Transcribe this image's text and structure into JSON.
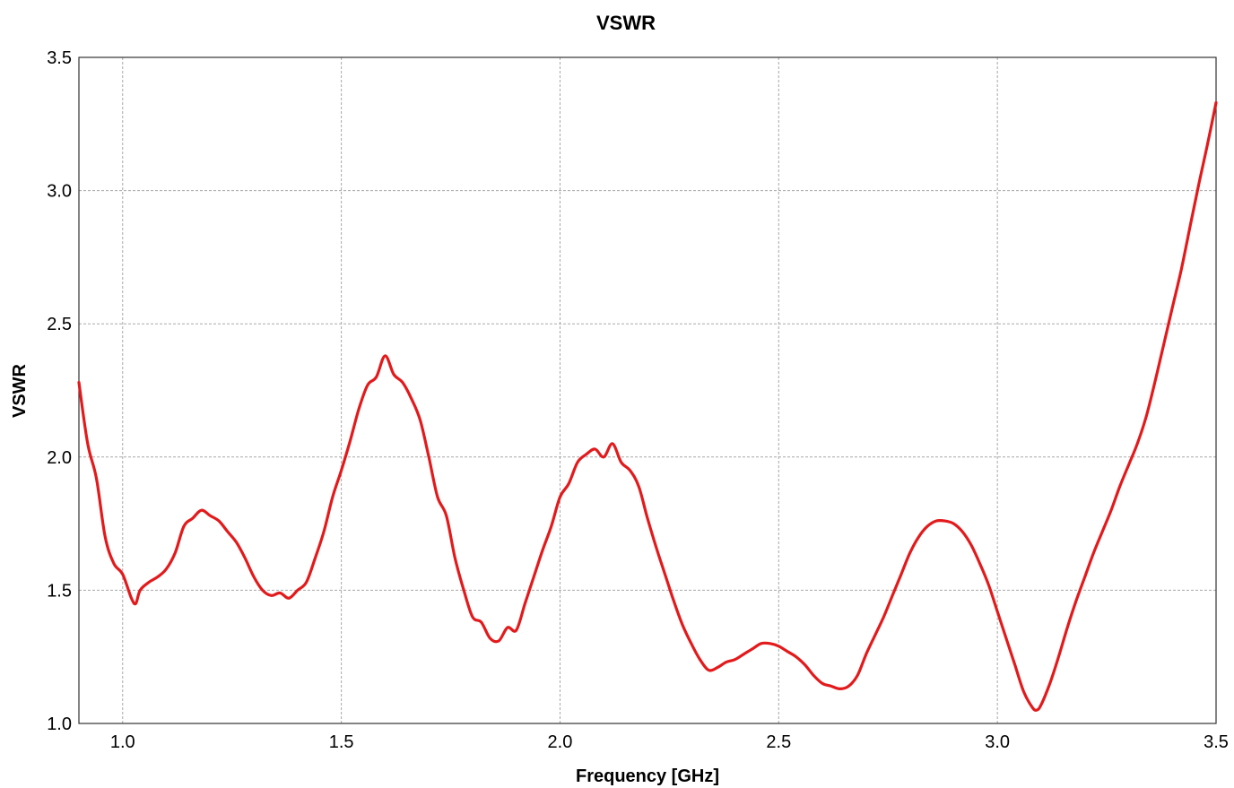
{
  "chart_data": {
    "type": "line",
    "title": "VSWR",
    "xlabel": "Frequency [GHz]",
    "ylabel": "VSWR",
    "xlim": [
      0.9,
      3.5
    ],
    "ylim": [
      1.0,
      3.5
    ],
    "x_ticks": [
      1.0,
      1.5,
      2.0,
      2.5,
      3.0,
      3.5
    ],
    "y_ticks": [
      1.0,
      1.5,
      2.0,
      2.5,
      3.0,
      3.5
    ],
    "x_tick_labels": [
      "1.0",
      "1.5",
      "2.0",
      "2.5",
      "3.0",
      "3.5"
    ],
    "y_tick_labels": [
      "1.0",
      "1.5",
      "2.0",
      "2.5",
      "3.0",
      "3.5"
    ],
    "grid": true,
    "legend": false,
    "colors": {
      "series": "#e31a1c",
      "grid": "#a8a8a8",
      "frame": "#333333"
    },
    "series": [
      {
        "x": [
          0.9,
          0.92,
          0.94,
          0.96,
          0.98,
          1.0,
          1.02,
          1.03,
          1.04,
          1.06,
          1.08,
          1.1,
          1.12,
          1.14,
          1.16,
          1.18,
          1.2,
          1.22,
          1.24,
          1.26,
          1.28,
          1.3,
          1.32,
          1.34,
          1.36,
          1.38,
          1.4,
          1.42,
          1.44,
          1.46,
          1.48,
          1.5,
          1.52,
          1.54,
          1.56,
          1.58,
          1.6,
          1.62,
          1.64,
          1.66,
          1.68,
          1.7,
          1.72,
          1.74,
          1.76,
          1.78,
          1.8,
          1.82,
          1.84,
          1.86,
          1.88,
          1.9,
          1.92,
          1.94,
          1.96,
          1.98,
          2.0,
          2.02,
          2.04,
          2.06,
          2.08,
          2.1,
          2.12,
          2.14,
          2.16,
          2.18,
          2.2,
          2.22,
          2.24,
          2.26,
          2.28,
          2.3,
          2.32,
          2.34,
          2.36,
          2.38,
          2.4,
          2.42,
          2.44,
          2.46,
          2.48,
          2.5,
          2.52,
          2.54,
          2.56,
          2.58,
          2.6,
          2.62,
          2.64,
          2.66,
          2.68,
          2.7,
          2.72,
          2.74,
          2.76,
          2.78,
          2.8,
          2.82,
          2.84,
          2.86,
          2.88,
          2.9,
          2.92,
          2.94,
          2.96,
          2.98,
          3.0,
          3.02,
          3.04,
          3.06,
          3.08,
          3.09,
          3.1,
          3.12,
          3.14,
          3.16,
          3.18,
          3.2,
          3.22,
          3.24,
          3.26,
          3.28,
          3.3,
          3.32,
          3.34,
          3.36,
          3.38,
          3.4,
          3.42,
          3.44,
          3.46,
          3.48,
          3.5
        ],
        "values": [
          2.28,
          2.05,
          1.92,
          1.7,
          1.6,
          1.56,
          1.47,
          1.45,
          1.5,
          1.53,
          1.55,
          1.58,
          1.64,
          1.74,
          1.77,
          1.8,
          1.78,
          1.76,
          1.72,
          1.68,
          1.62,
          1.55,
          1.5,
          1.48,
          1.49,
          1.47,
          1.5,
          1.53,
          1.62,
          1.72,
          1.85,
          1.95,
          2.06,
          2.18,
          2.27,
          2.3,
          2.38,
          2.31,
          2.28,
          2.22,
          2.14,
          2.0,
          1.85,
          1.78,
          1.62,
          1.5,
          1.4,
          1.38,
          1.32,
          1.31,
          1.36,
          1.35,
          1.45,
          1.55,
          1.65,
          1.74,
          1.85,
          1.9,
          1.98,
          2.01,
          2.03,
          2.0,
          2.05,
          1.98,
          1.95,
          1.89,
          1.77,
          1.66,
          1.56,
          1.46,
          1.37,
          1.3,
          1.24,
          1.2,
          1.21,
          1.23,
          1.24,
          1.26,
          1.28,
          1.3,
          1.3,
          1.29,
          1.27,
          1.25,
          1.22,
          1.18,
          1.15,
          1.14,
          1.13,
          1.14,
          1.18,
          1.26,
          1.33,
          1.4,
          1.48,
          1.56,
          1.64,
          1.7,
          1.74,
          1.76,
          1.76,
          1.75,
          1.72,
          1.67,
          1.6,
          1.52,
          1.42,
          1.32,
          1.22,
          1.12,
          1.06,
          1.05,
          1.07,
          1.15,
          1.25,
          1.36,
          1.46,
          1.55,
          1.64,
          1.72,
          1.8,
          1.89,
          1.97,
          2.05,
          2.15,
          2.28,
          2.42,
          2.56,
          2.7,
          2.86,
          3.02,
          3.17,
          3.33
        ]
      }
    ]
  }
}
